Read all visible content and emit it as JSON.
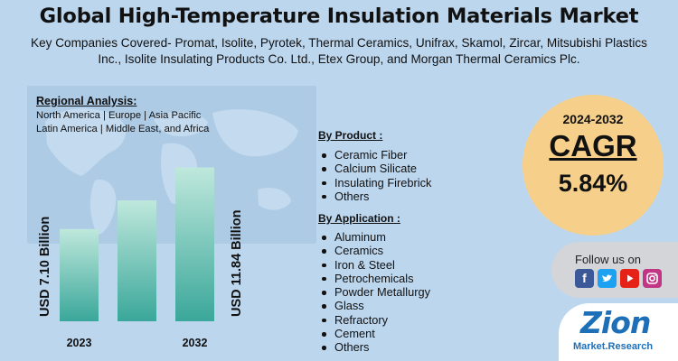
{
  "header": {
    "title": "Global High-Temperature Insulation Materials Market",
    "subtitle": "Key Companies Covered- Promat, Isolite, Pyrotek, Thermal Ceramics, Unifrax, Skamol, Zircar, Mitsubishi Plastics Inc., Isolite Insulating Products Co. Ltd., Etex Group, and Morgan Thermal Ceramics Plc."
  },
  "regional": {
    "title": "Regional Analysis:",
    "line1": "North America | Europe | Asia Pacific",
    "line2": "Latin America | Middle East, and Africa"
  },
  "segments": {
    "product_title": "By Product :",
    "products": [
      "Ceramic Fiber",
      "Calcium Silicate",
      "Insulating Firebrick",
      "Others"
    ],
    "application_title": "By Application :",
    "applications": [
      "Aluminum",
      "Ceramics",
      "Iron & Steel",
      "Petrochemicals",
      "Powder Metallurgy",
      "Glass",
      "Refractory",
      "Cement",
      "Others"
    ]
  },
  "cagr": {
    "period": "2024-2032",
    "label": "CAGR",
    "value": "5.84%"
  },
  "social": {
    "follow_text": "Follow us on",
    "icons": [
      "facebook-icon",
      "twitter-icon",
      "youtube-icon",
      "instagram-icon"
    ],
    "colors": [
      "#3b5998",
      "#1da1f2",
      "#e62117",
      "#c13584"
    ]
  },
  "brand": {
    "name": "Zion",
    "tagline": "Market.Research"
  },
  "colors": {
    "background": "#bcd6ee",
    "bar_top": "#bfe8dc",
    "bar_bottom": "#3aa79a",
    "cagr_circle": "#f6d08b",
    "brand_blue": "#1d6fb8"
  },
  "chart_data": {
    "type": "bar",
    "categories": [
      "2023",
      "2032"
    ],
    "values": [
      7.1,
      11.84
    ],
    "value_labels": [
      "USD 7.10 Billion",
      "USD 11.84 Billion"
    ],
    "title": "",
    "xlabel": "",
    "ylabel": "",
    "ylim": [
      0,
      12.5
    ],
    "intermediate_bar_values": [
      9.3
    ],
    "grid": false,
    "legend": "none"
  }
}
